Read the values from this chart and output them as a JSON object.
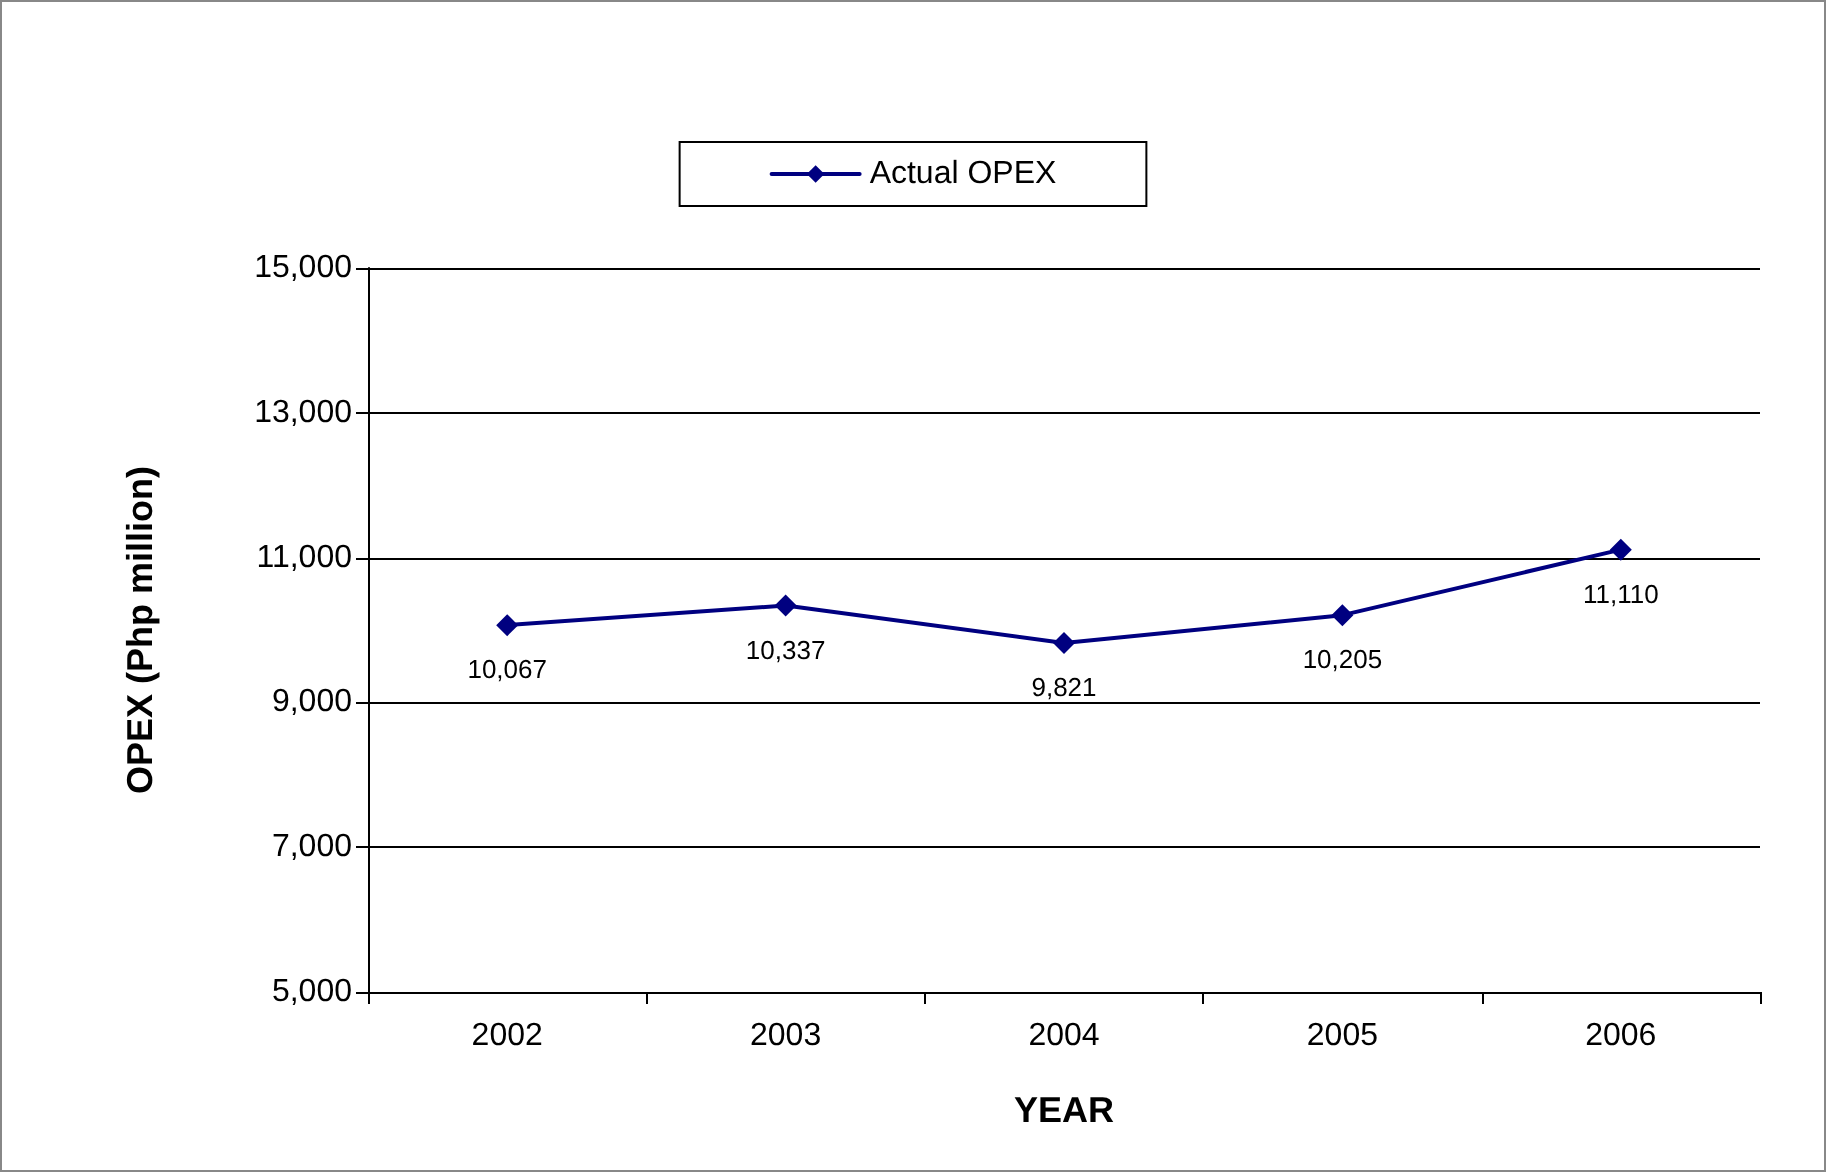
{
  "chart_data": {
    "type": "line",
    "xlabel": "YEAR",
    "ylabel": "OPEX (Php million)",
    "categories": [
      "2002",
      "2003",
      "2004",
      "2005",
      "2006"
    ],
    "series": [
      {
        "name": "Actual OPEX",
        "color": "#000080",
        "values": [
          10067,
          10337,
          9821,
          10205,
          11110
        ],
        "value_labels": [
          "10,067",
          "10,337",
          "9,821",
          "10,205",
          "11,110"
        ]
      }
    ],
    "ylim": [
      5000,
      15000
    ],
    "yticks": [
      {
        "value": 5000,
        "label": "5,000"
      },
      {
        "value": 7000,
        "label": "7,000"
      },
      {
        "value": 9000,
        "label": "9,000"
      },
      {
        "value": 11000,
        "label": "11,000"
      },
      {
        "value": 13000,
        "label": "13,000"
      },
      {
        "value": 15000,
        "label": "15,000"
      }
    ],
    "grid": "y",
    "legend": "top",
    "marker": "diamond",
    "line_style": "solid"
  }
}
